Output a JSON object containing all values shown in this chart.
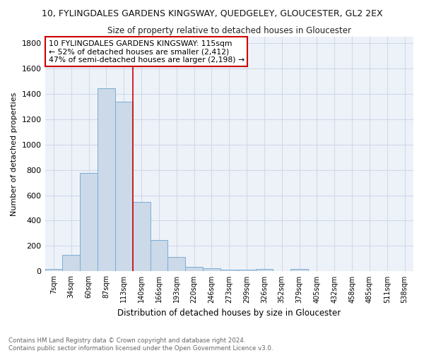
{
  "title": "10, FYLINGDALES GARDENS KINGSWAY, QUEDGELEY, GLOUCESTER, GL2 2EX",
  "subtitle": "Size of property relative to detached houses in Gloucester",
  "xlabel": "Distribution of detached houses by size in Gloucester",
  "ylabel": "Number of detached properties",
  "bar_color": "#ccd9e8",
  "bar_edge_color": "#7aadd4",
  "bar_categories": [
    "7sqm",
    "34sqm",
    "60sqm",
    "87sqm",
    "113sqm",
    "140sqm",
    "166sqm",
    "193sqm",
    "220sqm",
    "246sqm",
    "273sqm",
    "299sqm",
    "326sqm",
    "352sqm",
    "379sqm",
    "405sqm",
    "432sqm",
    "458sqm",
    "485sqm",
    "511sqm",
    "538sqm"
  ],
  "bar_values": [
    20,
    130,
    775,
    1440,
    1335,
    550,
    248,
    113,
    35,
    25,
    15,
    12,
    20,
    0,
    18,
    0,
    0,
    0,
    0,
    0,
    0
  ],
  "vline_x": 4.5,
  "annotation_text": "10 FYLINGDALES GARDENS KINGSWAY: 115sqm\n← 52% of detached houses are smaller (2,412)\n47% of semi-detached houses are larger (2,198) →",
  "annotation_box_color": "#ffffff",
  "annotation_box_edge": "#cc0000",
  "vline_color": "#cc0000",
  "grid_color": "#d0daea",
  "background_color": "#edf2f9",
  "footer": "Contains HM Land Registry data © Crown copyright and database right 2024.\nContains public sector information licensed under the Open Government Licence v3.0.",
  "ylim": [
    0,
    1850
  ],
  "yticks": [
    0,
    200,
    400,
    600,
    800,
    1000,
    1200,
    1400,
    1600,
    1800
  ]
}
